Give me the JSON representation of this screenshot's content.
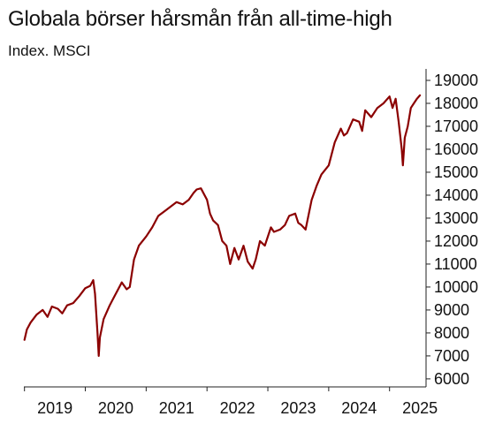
{
  "chart_data": {
    "type": "line",
    "title": "Globala börser hårsmån från all-time-high",
    "subtitle": "Index. MSCI",
    "xlabel": "",
    "ylabel": "",
    "x_ticks": [
      "2019",
      "2020",
      "2021",
      "2022",
      "2023",
      "2024",
      "2025"
    ],
    "y_ticks": [
      6000,
      7000,
      8000,
      9000,
      10000,
      11000,
      12000,
      13000,
      14000,
      15000,
      16000,
      17000,
      18000,
      19000
    ],
    "y_axis_side": "right",
    "xlim": [
      2018.99,
      2025.6
    ],
    "ylim": [
      5650,
      19500
    ],
    "grid": false,
    "legend": "none",
    "colors": {
      "line": "#8b0000",
      "axis": "#222222"
    },
    "series": [
      {
        "name": "",
        "x": [
          2019.0,
          2019.04,
          2019.1,
          2019.2,
          2019.3,
          2019.38,
          2019.45,
          2019.55,
          2019.62,
          2019.7,
          2019.8,
          2019.9,
          2020.0,
          2020.08,
          2020.13,
          2020.16,
          2020.2,
          2020.22,
          2020.24,
          2020.3,
          2020.4,
          2020.5,
          2020.6,
          2020.68,
          2020.73,
          2020.8,
          2020.88,
          2021.0,
          2021.1,
          2021.2,
          2021.3,
          2021.4,
          2021.5,
          2021.6,
          2021.7,
          2021.78,
          2021.83,
          2021.9,
          2022.0,
          2022.05,
          2022.1,
          2022.18,
          2022.25,
          2022.32,
          2022.38,
          2022.45,
          2022.52,
          2022.6,
          2022.67,
          2022.75,
          2022.8,
          2022.87,
          2022.95,
          2023.05,
          2023.1,
          2023.2,
          2023.28,
          2023.35,
          2023.45,
          2023.5,
          2023.55,
          2023.62,
          2023.72,
          2023.8,
          2023.88,
          2024.0,
          2024.1,
          2024.2,
          2024.25,
          2024.3,
          2024.4,
          2024.5,
          2024.55,
          2024.6,
          2024.7,
          2024.8,
          2024.9,
          2025.0,
          2025.05,
          2025.1,
          2025.15,
          2025.2,
          2025.22,
          2025.25,
          2025.3,
          2025.35,
          2025.4,
          2025.45,
          2025.5
        ],
        "y": [
          7700,
          8150,
          8450,
          8800,
          9000,
          8700,
          9150,
          9050,
          8850,
          9200,
          9300,
          9600,
          9950,
          10050,
          10300,
          9700,
          8000,
          7000,
          7800,
          8600,
          9200,
          9700,
          10200,
          9900,
          10000,
          11200,
          11800,
          12200,
          12600,
          13100,
          13300,
          13500,
          13700,
          13600,
          13800,
          14100,
          14250,
          14300,
          13800,
          13200,
          12900,
          12700,
          12000,
          11800,
          11000,
          11700,
          11200,
          11800,
          11100,
          10800,
          11200,
          12000,
          11800,
          12600,
          12400,
          12500,
          12700,
          13100,
          13200,
          12800,
          12700,
          12500,
          13800,
          14400,
          14900,
          15300,
          16300,
          16900,
          16600,
          16700,
          17300,
          17200,
          16800,
          17700,
          17400,
          17800,
          18000,
          18300,
          17800,
          18200,
          17200,
          16000,
          15300,
          16500,
          17000,
          17800,
          18000,
          18200,
          18350
        ]
      }
    ]
  }
}
